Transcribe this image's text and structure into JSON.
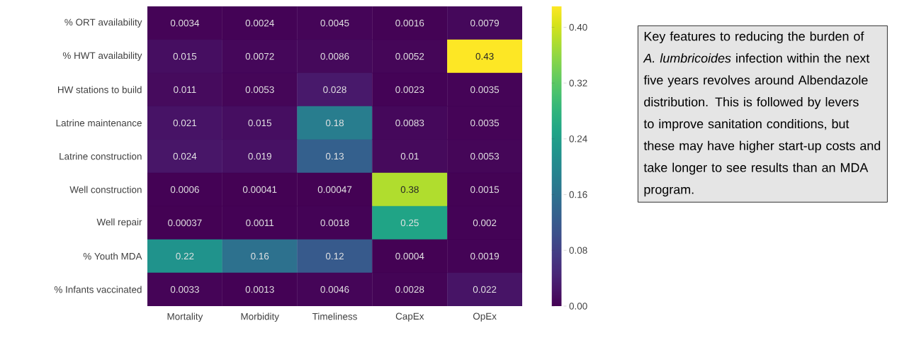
{
  "chart_data": {
    "type": "heatmap",
    "categories": [
      "Mortality",
      "Morbidity",
      "Timeliness",
      "CapEx",
      "OpEx"
    ],
    "y_categories": [
      "% ORT availability",
      "% HWT availability",
      "HW stations to build",
      "Latrine maintenance",
      "Latrine construction",
      "Well construction",
      "Well repair",
      "% Youth MDA",
      "% Infants vaccinated"
    ],
    "cells": [
      [
        0.0034,
        0.0024,
        0.0045,
        0.0016,
        0.0079
      ],
      [
        0.015,
        0.0072,
        0.0086,
        0.0052,
        0.43
      ],
      [
        0.011,
        0.0053,
        0.028,
        0.0023,
        0.0035
      ],
      [
        0.021,
        0.015,
        0.18,
        0.0083,
        0.0035
      ],
      [
        0.024,
        0.019,
        0.13,
        0.01,
        0.0053
      ],
      [
        0.0006,
        0.00041,
        0.00047,
        0.38,
        0.0015
      ],
      [
        0.00037,
        0.0011,
        0.0018,
        0.25,
        0.002
      ],
      [
        0.22,
        0.16,
        0.12,
        0.0004,
        0.0019
      ],
      [
        0.0033,
        0.0013,
        0.0046,
        0.0028,
        0.022
      ]
    ],
    "data_labels": true,
    "clim": [
      0,
      0.43
    ],
    "cticks": [
      {
        "value": 0,
        "label": "0.00"
      },
      {
        "value": 0.08,
        "label": "0.08"
      },
      {
        "value": 0.16,
        "label": "0.16"
      },
      {
        "value": 0.24,
        "label": "0.24"
      },
      {
        "value": 0.32,
        "label": "0.32"
      },
      {
        "value": 0.4,
        "label": "0.40"
      }
    ],
    "annotations": [
      "Key features to reducing the burden of *A. lumbricoides* infection within the next five years revolves around Albendazole distribution. This is followed by levers to improve sanitation conditions, but these may have higher start-up costs and take longer to see results than an MDA program."
    ]
  }
}
